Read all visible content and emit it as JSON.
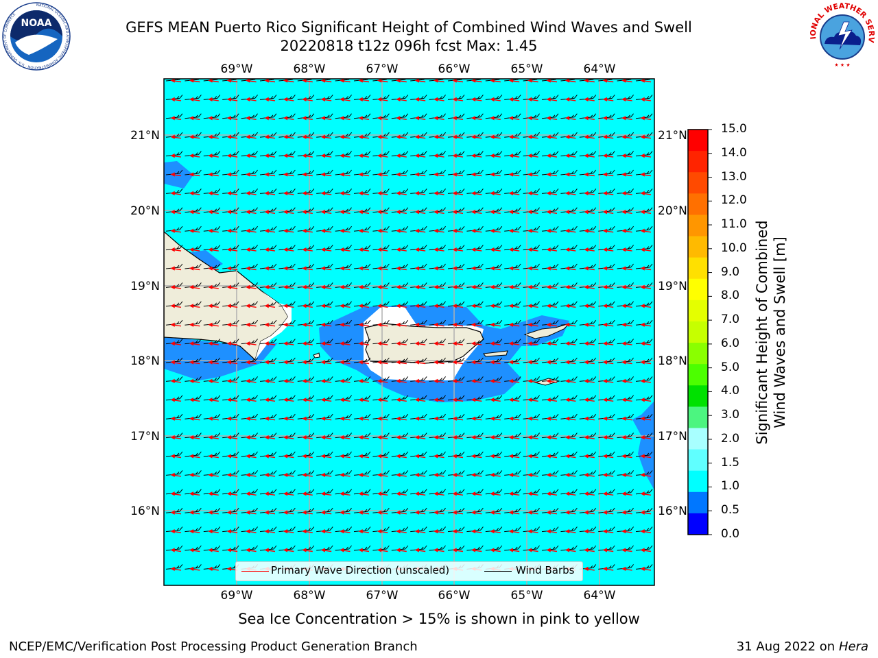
{
  "title": {
    "line1": "GEFS MEAN Puerto Rico Significant Height of Combined Wind Waves and Swell",
    "line2": "20220818 t12z 096h fcst   Max: 1.45"
  },
  "logos": {
    "left": {
      "text": "NOAA",
      "ring_text": "NATIONAL OCEANIC AND ATMOSPHERIC ADMINISTRATION · U.S. DEPARTMENT OF COMMERCE"
    },
    "right": {
      "ring_text": "NATIONAL WEATHER SERVICE"
    }
  },
  "map": {
    "lon_labels": [
      "69°W",
      "68°W",
      "67°W",
      "66°W",
      "65°W",
      "64°W"
    ],
    "lat_labels": [
      "21°N",
      "20°N",
      "19°N",
      "18°N",
      "17°N",
      "16°N"
    ],
    "lon_range": [
      -70.0,
      -63.25
    ],
    "lat_range": [
      15.1,
      21.8
    ],
    "background_color": "#00ffff"
  },
  "legend": {
    "primary_wave": "Primary Wave Direction (unscaled)",
    "wind_barbs": "Wind Barbs",
    "primary_wave_color": "#ff0000",
    "wind_barb_color": "#000000"
  },
  "colorbar": {
    "label_line1": "Significant Height of Combined",
    "label_line2": "Wind Waves and Swell [m]",
    "ticks": [
      "15.0",
      "14.0",
      "13.0",
      "12.0",
      "11.0",
      "10.0",
      "9.0",
      "8.0",
      "7.0",
      "6.0",
      "5.0",
      "4.0",
      "3.0",
      "2.0",
      "1.5",
      "1.0",
      "0.5",
      "0.0"
    ],
    "colors_top_to_bottom": [
      "#ff0000",
      "#ff2400",
      "#ff4a00",
      "#ff7000",
      "#ff9600",
      "#ffba00",
      "#ffe000",
      "#ffff00",
      "#e4ff00",
      "#c6ff00",
      "#8aff00",
      "#4cff00",
      "#00e100",
      "#4cf580",
      "#a8ffff",
      "#60ffff",
      "#00ffff",
      "#0077ff",
      "#0000ff"
    ]
  },
  "footer": {
    "sea_ice": "Sea Ice Concentration > 15% is shown in pink to yellow",
    "credit": "NCEP/EMC/Verification Post Processing Product Generation Branch",
    "date": "31 Aug 2022 on",
    "machine": "Hera"
  }
}
